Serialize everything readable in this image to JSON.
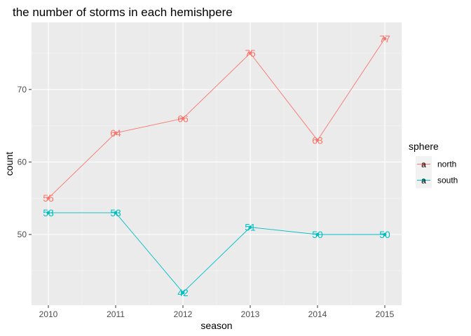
{
  "chart_data": {
    "type": "line",
    "title": "the number of storms in each hemishpere",
    "xlabel": "season",
    "ylabel": "count",
    "x": [
      2010,
      2011,
      2012,
      2013,
      2014,
      2015
    ],
    "xlim": [
      2009.75,
      2015.25
    ],
    "ylim": [
      40.25,
      79.25
    ],
    "y_ticks": [
      50,
      60,
      70
    ],
    "y_minor_ticks": [
      45,
      55,
      65,
      75
    ],
    "grid": true,
    "legend": {
      "title": "sphere",
      "position": "right"
    },
    "series": [
      {
        "name": "north",
        "color": "#F8766D",
        "values": [
          55,
          64,
          66,
          75,
          63,
          77
        ]
      },
      {
        "name": "south",
        "color": "#00BFC4",
        "values": [
          53,
          53,
          42,
          51,
          50,
          50
        ]
      }
    ],
    "legend_key_glyph": "a"
  }
}
